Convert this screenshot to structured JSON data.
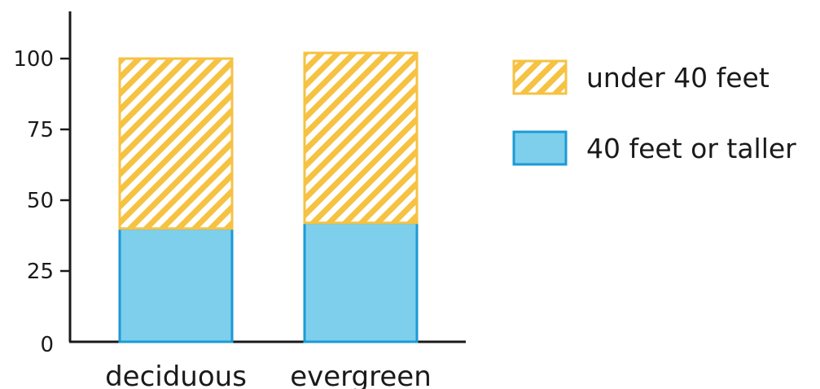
{
  "chart_data": {
    "type": "bar",
    "stacked": true,
    "categories": [
      "deciduous",
      "evergreen"
    ],
    "series": [
      {
        "name": "40 feet or taller",
        "values": [
          40,
          42
        ],
        "color": "#7dcfec",
        "stroke": "#1c9ad6",
        "fill_style": "solid"
      },
      {
        "name": "under 40 feet",
        "values": [
          60,
          60
        ],
        "color": "#f5c242",
        "stroke": "#f5c242",
        "fill_style": "hatched"
      }
    ],
    "yticks": [
      0,
      25,
      50,
      75,
      100
    ],
    "ylim": [
      0,
      115
    ],
    "title": "",
    "xlabel": "",
    "ylabel": "",
    "legend": {
      "placement": "right",
      "order": [
        "under 40 feet",
        "40 feet or taller"
      ]
    },
    "grid": false
  }
}
